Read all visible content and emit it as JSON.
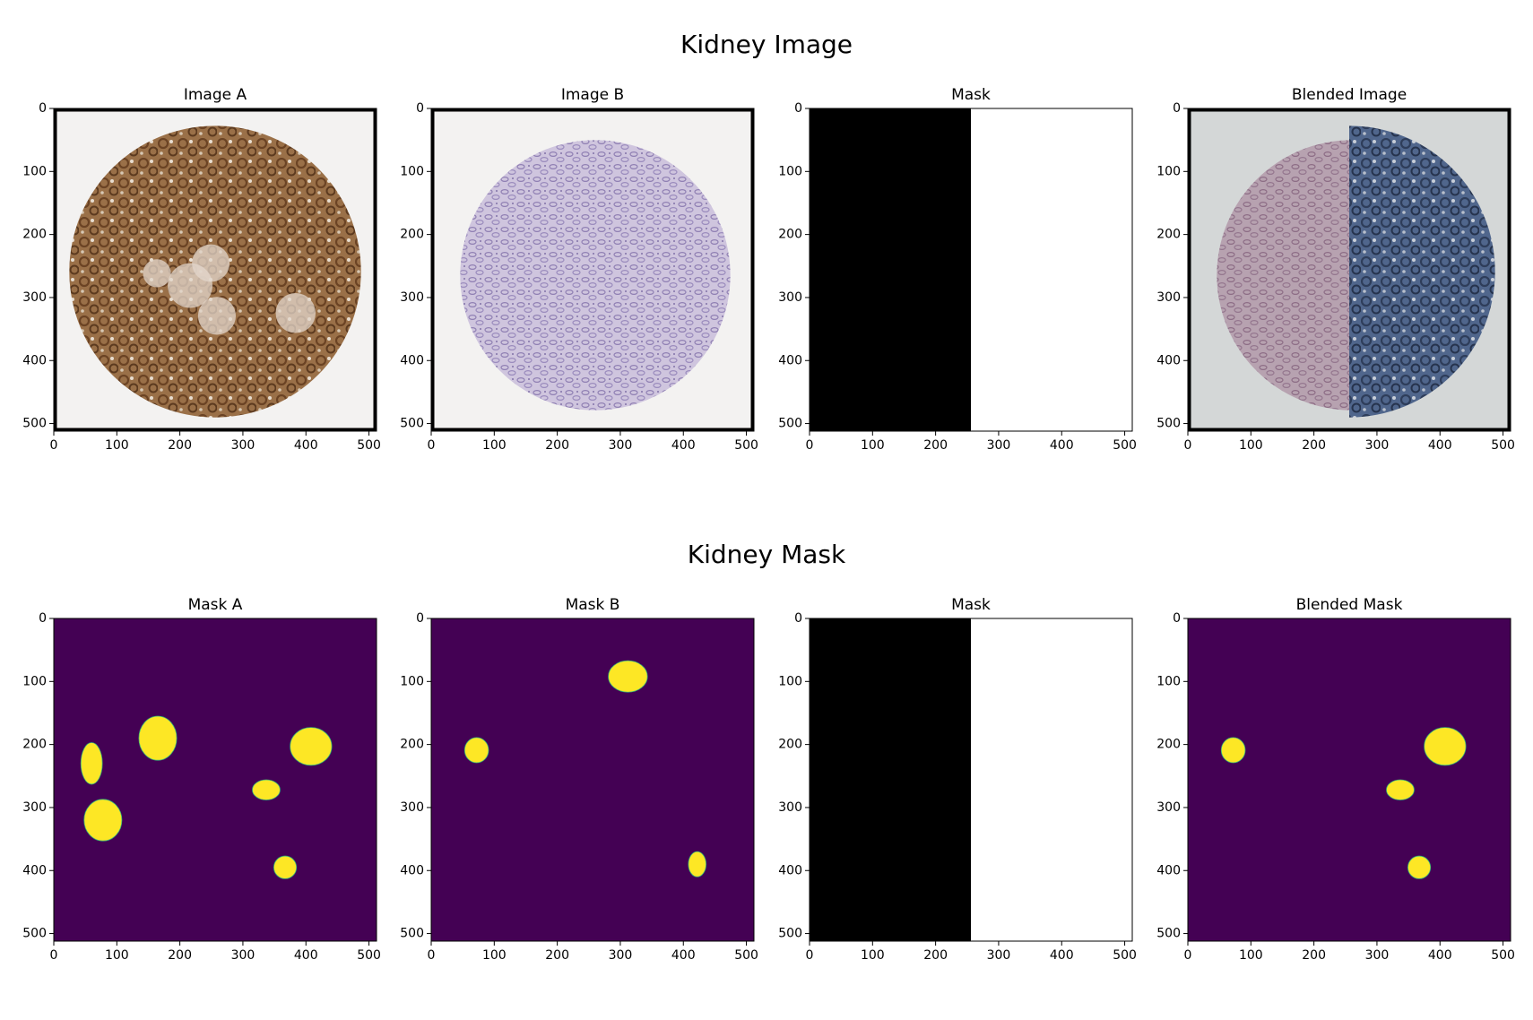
{
  "suptitles": [
    "Kidney Image",
    "Kidney Mask"
  ],
  "colors": {
    "viridis_low": "#440154",
    "viridis_high": "#fde725",
    "tissue_brown": "#9a7048",
    "tissue_lilac": "#c7bcd9",
    "slide_background": "#f3f2f1",
    "blend_blue": "#4a5f82",
    "blend_pinkish": "#b59aa8",
    "blend_background": "#d4d7d7"
  },
  "chart_data": [
    {
      "type": "heatmap",
      "title": "Image A",
      "kind": "tissue-brown",
      "xlim": [
        0,
        512
      ],
      "ylim": [
        512,
        0
      ],
      "xticks": [
        0,
        100,
        200,
        300,
        400,
        500
      ],
      "yticks": [
        0,
        100,
        200,
        300,
        400,
        500
      ],
      "grid": false
    },
    {
      "type": "heatmap",
      "title": "Image B",
      "kind": "tissue-lilac",
      "xlim": [
        0,
        512
      ],
      "ylim": [
        512,
        0
      ],
      "xticks": [
        0,
        100,
        200,
        300,
        400,
        500
      ],
      "yticks": [
        0,
        100,
        200,
        300,
        400,
        500
      ],
      "grid": false
    },
    {
      "type": "heatmap",
      "title": "Mask",
      "kind": "binary-mask",
      "split_x": 256,
      "xlim": [
        0,
        512
      ],
      "ylim": [
        512,
        0
      ],
      "xticks": [
        0,
        100,
        200,
        300,
        400,
        500
      ],
      "yticks": [
        0,
        100,
        200,
        300,
        400,
        500
      ],
      "grid": false
    },
    {
      "type": "heatmap",
      "title": "Blended Image",
      "kind": "tissue-blend",
      "split_x": 256,
      "xlim": [
        0,
        512
      ],
      "ylim": [
        512,
        0
      ],
      "xticks": [
        0,
        100,
        200,
        300,
        400,
        500
      ],
      "yticks": [
        0,
        100,
        200,
        300,
        400,
        500
      ],
      "grid": false
    },
    {
      "type": "heatmap",
      "title": "Mask A",
      "kind": "label-mask",
      "xlim": [
        0,
        512
      ],
      "ylim": [
        512,
        0
      ],
      "xticks": [
        0,
        100,
        200,
        300,
        400,
        500
      ],
      "yticks": [
        0,
        100,
        200,
        300,
        400,
        500
      ],
      "grid": false,
      "regions": [
        {
          "cx": 165,
          "cy": 190,
          "rx": 30,
          "ry": 35
        },
        {
          "cx": 60,
          "cy": 230,
          "rx": 17,
          "ry": 33
        },
        {
          "cx": 78,
          "cy": 320,
          "rx": 30,
          "ry": 33
        },
        {
          "cx": 337,
          "cy": 272,
          "rx": 22,
          "ry": 16
        },
        {
          "cx": 408,
          "cy": 203,
          "rx": 33,
          "ry": 30
        },
        {
          "cx": 367,
          "cy": 395,
          "rx": 18,
          "ry": 18
        }
      ]
    },
    {
      "type": "heatmap",
      "title": "Mask B",
      "kind": "label-mask",
      "xlim": [
        0,
        512
      ],
      "ylim": [
        512,
        0
      ],
      "xticks": [
        0,
        100,
        200,
        300,
        400,
        500
      ],
      "yticks": [
        0,
        100,
        200,
        300,
        400,
        500
      ],
      "grid": false,
      "regions": [
        {
          "cx": 312,
          "cy": 92,
          "rx": 31,
          "ry": 25
        },
        {
          "cx": 72,
          "cy": 209,
          "rx": 19,
          "ry": 20
        },
        {
          "cx": 422,
          "cy": 390,
          "rx": 14,
          "ry": 20
        }
      ]
    },
    {
      "type": "heatmap",
      "title": "Mask",
      "kind": "binary-mask",
      "split_x": 256,
      "xlim": [
        0,
        512
      ],
      "ylim": [
        512,
        0
      ],
      "xticks": [
        0,
        100,
        200,
        300,
        400,
        500
      ],
      "yticks": [
        0,
        100,
        200,
        300,
        400,
        500
      ],
      "grid": false
    },
    {
      "type": "heatmap",
      "title": "Blended Mask",
      "kind": "label-mask",
      "xlim": [
        0,
        512
      ],
      "ylim": [
        512,
        0
      ],
      "xticks": [
        0,
        100,
        200,
        300,
        400,
        500
      ],
      "yticks": [
        0,
        100,
        200,
        300,
        400,
        500
      ],
      "grid": false,
      "regions": [
        {
          "cx": 72,
          "cy": 209,
          "rx": 19,
          "ry": 20
        },
        {
          "cx": 408,
          "cy": 203,
          "rx": 33,
          "ry": 30
        },
        {
          "cx": 337,
          "cy": 272,
          "rx": 22,
          "ry": 16
        },
        {
          "cx": 367,
          "cy": 395,
          "rx": 18,
          "ry": 18
        }
      ]
    }
  ]
}
